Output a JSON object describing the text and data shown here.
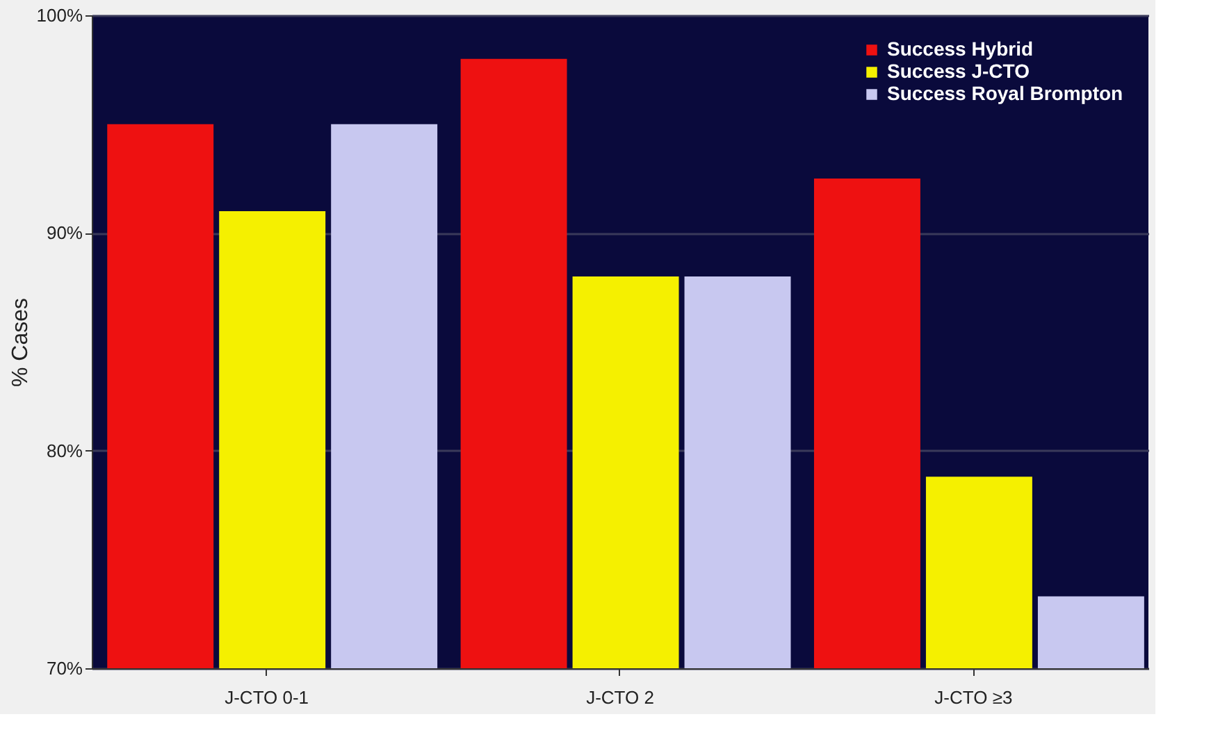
{
  "chart_data": {
    "type": "bar",
    "ylabel": "% Cases",
    "categories": [
      "J-CTO 0-1",
      "J-CTO 2",
      "J-CTO ≥3"
    ],
    "series": [
      {
        "name": "Success Hybrid",
        "color": "#ee1111",
        "values": [
          95,
          98,
          92.5
        ]
      },
      {
        "name": "Success J-CTO",
        "color": "#f5f000",
        "values": [
          91,
          88,
          78.8
        ]
      },
      {
        "name": "Success Royal Brompton",
        "color": "#c8c8f0",
        "values": [
          95,
          88,
          73.3
        ]
      }
    ],
    "ylim": [
      70,
      100
    ],
    "yticks": [
      {
        "value": 70,
        "label": "70%"
      },
      {
        "value": 80,
        "label": "80%"
      },
      {
        "value": 90,
        "label": "90%"
      },
      {
        "value": 100,
        "label": "100%"
      }
    ],
    "grid": "y",
    "legend": "top right"
  }
}
